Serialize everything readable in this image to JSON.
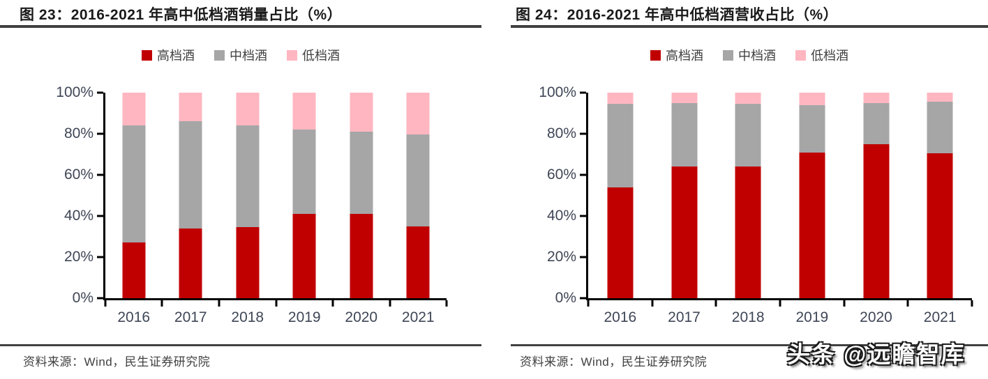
{
  "panels": [
    {
      "title": "图 23：2016-2021 年高中低档酒销量占比（%）",
      "source": "资料来源：Wind，民生证券研究院"
    },
    {
      "title": "图 24：2016-2021 年高中低档酒营收占比（%）",
      "source": "资料来源：Wind，民生证券研究院"
    }
  ],
  "watermark": "头条 @远瞻智库",
  "colors": {
    "high_grade_red": "#C00000",
    "mid_grade_gray": "#A6A6A6",
    "low_grade_pink": "#FFB6C1",
    "rule_dark": "#404040",
    "axis_black": "#000000",
    "tick_label": "#3F4656"
  },
  "chart_data": [
    {
      "type": "bar",
      "stacked": true,
      "title": "图 23：2016-2021 年高中低档酒销量占比（%）",
      "categories": [
        "2016",
        "2017",
        "2018",
        "2019",
        "2020",
        "2021"
      ],
      "series": [
        {
          "name": "高档酒",
          "color": "#C00000",
          "values": [
            27,
            34,
            34.5,
            41,
            41,
            35
          ]
        },
        {
          "name": "中档酒",
          "color": "#A6A6A6",
          "values": [
            57,
            52,
            49.5,
            41,
            40,
            44.5
          ]
        },
        {
          "name": "低档酒",
          "color": "#FFB6C1",
          "values": [
            16,
            14,
            16,
            18,
            19,
            20.5
          ]
        }
      ],
      "ylim": [
        0,
        100
      ],
      "yticks": [
        "0%",
        "20%",
        "40%",
        "60%",
        "80%",
        "100%"
      ],
      "grid": false,
      "legend_position": "top"
    },
    {
      "type": "bar",
      "stacked": true,
      "title": "图 24：2016-2021 年高中低档酒营收占比（%）",
      "categories": [
        "2016",
        "2017",
        "2018",
        "2019",
        "2020",
        "2021"
      ],
      "series": [
        {
          "name": "高档酒",
          "color": "#C00000",
          "values": [
            54,
            64,
            64,
            71,
            75,
            70.5
          ]
        },
        {
          "name": "中档酒",
          "color": "#A6A6A6",
          "values": [
            40.5,
            31,
            30.5,
            23,
            20,
            25
          ]
        },
        {
          "name": "低档酒",
          "color": "#FFB6C1",
          "values": [
            5.5,
            5,
            5.5,
            6,
            5,
            4.5
          ]
        }
      ],
      "ylim": [
        0,
        100
      ],
      "yticks": [
        "0%",
        "20%",
        "40%",
        "60%",
        "80%",
        "100%"
      ],
      "grid": false,
      "legend_position": "top"
    }
  ]
}
